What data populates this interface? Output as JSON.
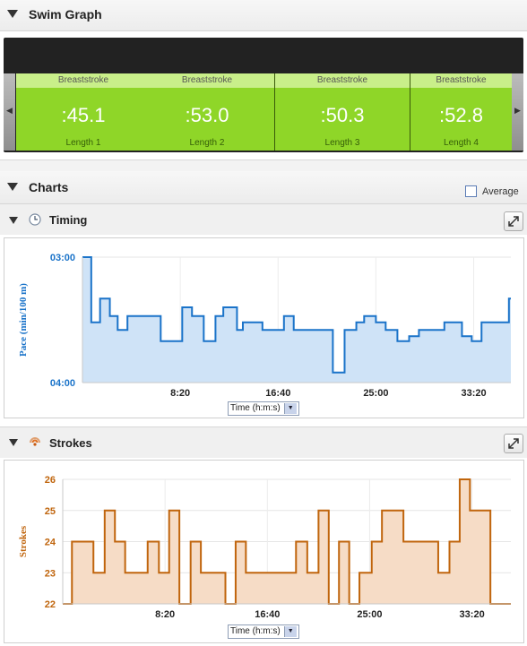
{
  "swim_graph": {
    "title": "Swim Graph",
    "laps": [
      {
        "stroke": "Breaststroke",
        "time": ":45.1",
        "label": "Length 1"
      },
      {
        "stroke": "Breaststroke",
        "time": ":53.0",
        "label": "Length 2"
      },
      {
        "stroke": "Breaststroke",
        "time": ":50.3",
        "label": "Length 3"
      },
      {
        "stroke": "Breaststroke",
        "time": ":52.8",
        "label": "Length 4"
      }
    ]
  },
  "charts": {
    "title": "Charts",
    "average_label": "Average",
    "average_checked": false
  },
  "timing": {
    "title": "Timing",
    "x_select": "Time (h:m:s)",
    "chart_data": {
      "type": "area",
      "ylabel": "Pace (min/100 m)",
      "y_ticks": [
        "03:00",
        "04:00"
      ],
      "ylim": [
        3.0,
        4.0
      ],
      "y_inverted": true,
      "x_ticks": [
        "8:20",
        "16:40",
        "25:00",
        "33:20"
      ],
      "x_tick_values": [
        500,
        1000,
        1500,
        2000
      ],
      "xlim": [
        0,
        2190
      ],
      "color": "#1a73c9",
      "fill": "#cfe3f7",
      "points": [
        [
          0,
          3.0
        ],
        [
          45,
          3.0
        ],
        [
          45,
          3.52
        ],
        [
          90,
          3.52
        ],
        [
          90,
          3.33
        ],
        [
          140,
          3.33
        ],
        [
          140,
          3.47
        ],
        [
          180,
          3.47
        ],
        [
          180,
          3.58
        ],
        [
          230,
          3.58
        ],
        [
          230,
          3.47
        ],
        [
          400,
          3.47
        ],
        [
          400,
          3.67
        ],
        [
          510,
          3.67
        ],
        [
          510,
          3.4
        ],
        [
          560,
          3.4
        ],
        [
          560,
          3.47
        ],
        [
          620,
          3.47
        ],
        [
          620,
          3.67
        ],
        [
          680,
          3.67
        ],
        [
          680,
          3.47
        ],
        [
          720,
          3.47
        ],
        [
          720,
          3.4
        ],
        [
          790,
          3.4
        ],
        [
          790,
          3.58
        ],
        [
          820,
          3.58
        ],
        [
          820,
          3.52
        ],
        [
          920,
          3.52
        ],
        [
          920,
          3.58
        ],
        [
          1030,
          3.58
        ],
        [
          1030,
          3.47
        ],
        [
          1080,
          3.47
        ],
        [
          1080,
          3.58
        ],
        [
          1280,
          3.58
        ],
        [
          1280,
          3.92
        ],
        [
          1340,
          3.92
        ],
        [
          1340,
          3.58
        ],
        [
          1400,
          3.58
        ],
        [
          1400,
          3.52
        ],
        [
          1440,
          3.52
        ],
        [
          1440,
          3.47
        ],
        [
          1500,
          3.47
        ],
        [
          1500,
          3.52
        ],
        [
          1550,
          3.52
        ],
        [
          1550,
          3.58
        ],
        [
          1610,
          3.58
        ],
        [
          1610,
          3.67
        ],
        [
          1670,
          3.67
        ],
        [
          1670,
          3.63
        ],
        [
          1720,
          3.63
        ],
        [
          1720,
          3.58
        ],
        [
          1850,
          3.58
        ],
        [
          1850,
          3.52
        ],
        [
          1940,
          3.52
        ],
        [
          1940,
          3.63
        ],
        [
          1990,
          3.63
        ],
        [
          1990,
          3.67
        ],
        [
          2040,
          3.67
        ],
        [
          2040,
          3.52
        ],
        [
          2180,
          3.52
        ],
        [
          2180,
          3.33
        ],
        [
          2190,
          3.33
        ]
      ]
    }
  },
  "strokes": {
    "title": "Strokes",
    "x_select": "Time (h:m:s)",
    "chart_data": {
      "type": "area",
      "ylabel": "Strokes",
      "y_ticks": [
        "22",
        "23",
        "24",
        "25",
        "26"
      ],
      "ylim": [
        22,
        26
      ],
      "x_ticks": [
        "8:20",
        "16:40",
        "25:00",
        "33:20"
      ],
      "x_tick_values": [
        500,
        1000,
        1500,
        2000
      ],
      "xlim": [
        0,
        2190
      ],
      "color": "#c0650d",
      "fill": "#f6dcc6",
      "points": [
        [
          0,
          22
        ],
        [
          45,
          22
        ],
        [
          45,
          24
        ],
        [
          150,
          24
        ],
        [
          150,
          23
        ],
        [
          205,
          23
        ],
        [
          205,
          25
        ],
        [
          255,
          25
        ],
        [
          255,
          24
        ],
        [
          305,
          24
        ],
        [
          305,
          23
        ],
        [
          415,
          23
        ],
        [
          415,
          24
        ],
        [
          470,
          24
        ],
        [
          470,
          23
        ],
        [
          520,
          23
        ],
        [
          520,
          25
        ],
        [
          570,
          25
        ],
        [
          570,
          22
        ],
        [
          625,
          22
        ],
        [
          625,
          24
        ],
        [
          675,
          24
        ],
        [
          675,
          23
        ],
        [
          795,
          23
        ],
        [
          795,
          22
        ],
        [
          845,
          22
        ],
        [
          845,
          24
        ],
        [
          895,
          24
        ],
        [
          895,
          23
        ],
        [
          1140,
          23
        ],
        [
          1140,
          24
        ],
        [
          1195,
          24
        ],
        [
          1195,
          23
        ],
        [
          1250,
          23
        ],
        [
          1250,
          25
        ],
        [
          1300,
          25
        ],
        [
          1300,
          22
        ],
        [
          1350,
          22
        ],
        [
          1350,
          24
        ],
        [
          1400,
          24
        ],
        [
          1400,
          22
        ],
        [
          1450,
          22
        ],
        [
          1450,
          23
        ],
        [
          1510,
          23
        ],
        [
          1510,
          24
        ],
        [
          1560,
          24
        ],
        [
          1560,
          25
        ],
        [
          1665,
          25
        ],
        [
          1665,
          24
        ],
        [
          1835,
          24
        ],
        [
          1835,
          23
        ],
        [
          1890,
          23
        ],
        [
          1890,
          24
        ],
        [
          1940,
          24
        ],
        [
          1940,
          26
        ],
        [
          1990,
          26
        ],
        [
          1990,
          25
        ],
        [
          2090,
          25
        ],
        [
          2090,
          22
        ],
        [
          2190,
          22
        ]
      ]
    }
  }
}
